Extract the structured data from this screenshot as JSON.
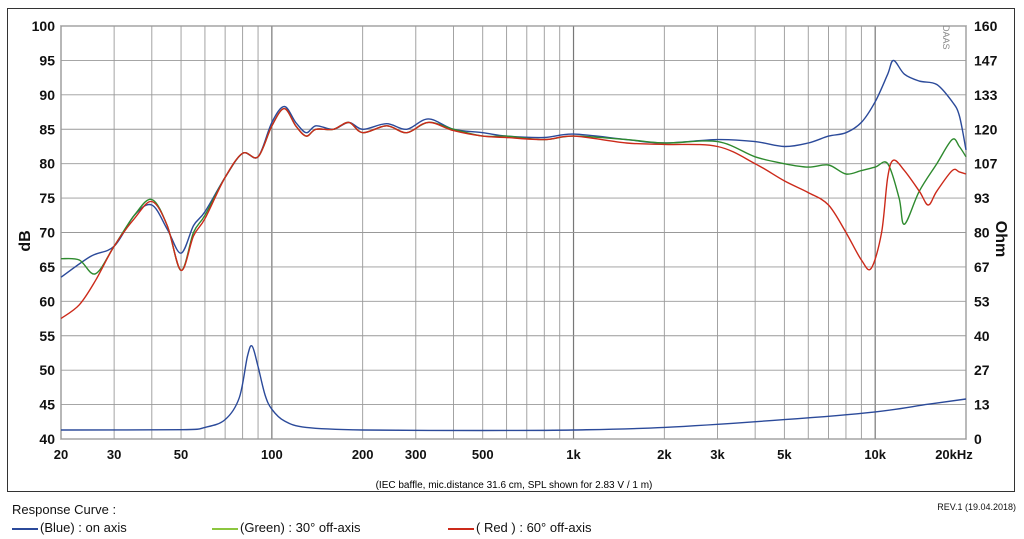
{
  "chart_data": {
    "type": "line",
    "x_scale": "log",
    "xlim": [
      20,
      20000
    ],
    "ylim_left": [
      40,
      100
    ],
    "ylim_right": [
      0,
      160
    ],
    "ylabel_left": "dB",
    "ylabel_right": "Ohm",
    "x_ticks": [
      {
        "value": 20,
        "label": "20"
      },
      {
        "value": 30,
        "label": "30"
      },
      {
        "value": 50,
        "label": "50"
      },
      {
        "value": 100,
        "label": "100"
      },
      {
        "value": 200,
        "label": "200"
      },
      {
        "value": 300,
        "label": "300"
      },
      {
        "value": 500,
        "label": "500"
      },
      {
        "value": 1000,
        "label": "1k"
      },
      {
        "value": 2000,
        "label": "2k"
      },
      {
        "value": 3000,
        "label": "3k"
      },
      {
        "value": 5000,
        "label": "5k"
      },
      {
        "value": 10000,
        "label": "10k"
      },
      {
        "value": 20000,
        "label": "20kHz"
      }
    ],
    "y_ticks_left": [
      "40",
      "45",
      "50",
      "55",
      "60",
      "65",
      "70",
      "75",
      "80",
      "85",
      "90",
      "95",
      "100"
    ],
    "y_ticks_right": [
      "0",
      "13",
      "27",
      "40",
      "53",
      "67",
      "80",
      "93",
      "107",
      "120",
      "133",
      "147",
      "160"
    ],
    "grid": true,
    "annotation": "(IEC baffle, mic.distance 31.6 cm, SPL shown for 2.83 V / 1 m)",
    "series": [
      {
        "name": "(Blue) : on axis",
        "color": "#2b4a9a",
        "axis": "left",
        "points": [
          [
            20,
            63.5
          ],
          [
            25,
            66.5
          ],
          [
            30,
            68
          ],
          [
            35,
            72.5
          ],
          [
            40,
            74
          ],
          [
            45,
            70.5
          ],
          [
            50,
            67
          ],
          [
            55,
            71
          ],
          [
            60,
            73
          ],
          [
            70,
            78
          ],
          [
            80,
            81.5
          ],
          [
            90,
            81
          ],
          [
            100,
            86
          ],
          [
            110,
            88.3
          ],
          [
            120,
            86
          ],
          [
            130,
            84.5
          ],
          [
            140,
            85.5
          ],
          [
            160,
            85
          ],
          [
            180,
            86
          ],
          [
            200,
            85
          ],
          [
            240,
            85.8
          ],
          [
            280,
            85
          ],
          [
            330,
            86.5
          ],
          [
            400,
            85
          ],
          [
            500,
            84.5
          ],
          [
            600,
            84
          ],
          [
            800,
            83.8
          ],
          [
            1000,
            84.3
          ],
          [
            1500,
            83.5
          ],
          [
            2000,
            83
          ],
          [
            3000,
            83.5
          ],
          [
            4000,
            83.2
          ],
          [
            5000,
            82.5
          ],
          [
            6000,
            83
          ],
          [
            7000,
            84
          ],
          [
            8000,
            84.5
          ],
          [
            9000,
            86
          ],
          [
            10000,
            89
          ],
          [
            11000,
            93
          ],
          [
            11500,
            95
          ],
          [
            12500,
            93
          ],
          [
            14000,
            92
          ],
          [
            16000,
            91.5
          ],
          [
            18000,
            89
          ],
          [
            19000,
            87
          ],
          [
            20000,
            82
          ]
        ]
      },
      {
        "name": "(Green) : 30° off-axis",
        "color": "#2e8a2e",
        "axis": "left",
        "points": [
          [
            20,
            66.2
          ],
          [
            23,
            66
          ],
          [
            26,
            64
          ],
          [
            30,
            68
          ],
          [
            35,
            72.5
          ],
          [
            40,
            74.8
          ],
          [
            45,
            71
          ],
          [
            50,
            64.5
          ],
          [
            55,
            70
          ],
          [
            60,
            72.5
          ],
          [
            70,
            78
          ],
          [
            80,
            81.5
          ],
          [
            90,
            81
          ],
          [
            100,
            85.5
          ],
          [
            110,
            88
          ],
          [
            120,
            85.5
          ],
          [
            130,
            84
          ],
          [
            140,
            85
          ],
          [
            160,
            85
          ],
          [
            180,
            86
          ],
          [
            200,
            84.5
          ],
          [
            240,
            85.5
          ],
          [
            280,
            84.5
          ],
          [
            330,
            86
          ],
          [
            400,
            85
          ],
          [
            500,
            84
          ],
          [
            600,
            84
          ],
          [
            800,
            83.5
          ],
          [
            1000,
            84
          ],
          [
            1500,
            83.5
          ],
          [
            2000,
            83
          ],
          [
            3000,
            83.2
          ],
          [
            4000,
            81
          ],
          [
            5000,
            80
          ],
          [
            6000,
            79.5
          ],
          [
            7000,
            79.8
          ],
          [
            8000,
            78.5
          ],
          [
            9000,
            79
          ],
          [
            10000,
            79.5
          ],
          [
            11000,
            80
          ],
          [
            12000,
            75
          ],
          [
            12500,
            71.2
          ],
          [
            14000,
            76
          ],
          [
            16000,
            80
          ],
          [
            18000,
            83.5
          ],
          [
            19000,
            82.5
          ],
          [
            20000,
            81
          ]
        ]
      },
      {
        "name": "( Red ) : 60° off-axis",
        "color": "#cc2a1a",
        "axis": "left",
        "points": [
          [
            20,
            57.5
          ],
          [
            23,
            59.5
          ],
          [
            26,
            63
          ],
          [
            30,
            68
          ],
          [
            35,
            72
          ],
          [
            40,
            74.5
          ],
          [
            45,
            71
          ],
          [
            50,
            64.5
          ],
          [
            55,
            69.5
          ],
          [
            60,
            72
          ],
          [
            70,
            78
          ],
          [
            80,
            81.5
          ],
          [
            90,
            81
          ],
          [
            100,
            85.5
          ],
          [
            110,
            88
          ],
          [
            120,
            85.5
          ],
          [
            130,
            84
          ],
          [
            140,
            85
          ],
          [
            160,
            85
          ],
          [
            180,
            86
          ],
          [
            200,
            84.5
          ],
          [
            240,
            85.5
          ],
          [
            280,
            84.5
          ],
          [
            330,
            86
          ],
          [
            400,
            84.8
          ],
          [
            500,
            84
          ],
          [
            600,
            83.8
          ],
          [
            800,
            83.5
          ],
          [
            1000,
            84
          ],
          [
            1500,
            83
          ],
          [
            2000,
            82.8
          ],
          [
            3000,
            82.5
          ],
          [
            4000,
            80
          ],
          [
            5000,
            77.5
          ],
          [
            6000,
            75.8
          ],
          [
            7000,
            74
          ],
          [
            8000,
            70
          ],
          [
            9000,
            66
          ],
          [
            9700,
            64.8
          ],
          [
            10500,
            70
          ],
          [
            11000,
            78
          ],
          [
            11500,
            80.5
          ],
          [
            12500,
            79
          ],
          [
            14000,
            76
          ],
          [
            15000,
            74
          ],
          [
            16000,
            76
          ],
          [
            18000,
            79
          ],
          [
            19000,
            78.8
          ],
          [
            20000,
            78.5
          ]
        ]
      },
      {
        "name": "Impedance",
        "color": "#2b4a9a",
        "axis": "right",
        "points": [
          [
            20,
            3.5
          ],
          [
            50,
            3.6
          ],
          [
            60,
            4.5
          ],
          [
            70,
            7.5
          ],
          [
            78,
            16
          ],
          [
            83,
            32
          ],
          [
            86,
            36
          ],
          [
            90,
            28
          ],
          [
            95,
            17
          ],
          [
            100,
            11.5
          ],
          [
            110,
            7
          ],
          [
            130,
            4.5
          ],
          [
            200,
            3.5
          ],
          [
            500,
            3.3
          ],
          [
            1000,
            3.5
          ],
          [
            2000,
            4.5
          ],
          [
            5000,
            7.5
          ],
          [
            10000,
            10.5
          ],
          [
            15000,
            13.5
          ],
          [
            20000,
            15.5
          ]
        ]
      }
    ]
  },
  "legend": {
    "title": "Response Curve :",
    "items": [
      {
        "label": "(Blue)  : on axis",
        "color": "#2b4a9a"
      },
      {
        "label": "(Green) : 30° off-axis",
        "color": "#8cc63f"
      },
      {
        "label": "( Red ) : 60° off-axis",
        "color": "#cc2a1a"
      }
    ]
  },
  "revision": "REV.1 (19.04.2018)",
  "watermark": "DAAS"
}
